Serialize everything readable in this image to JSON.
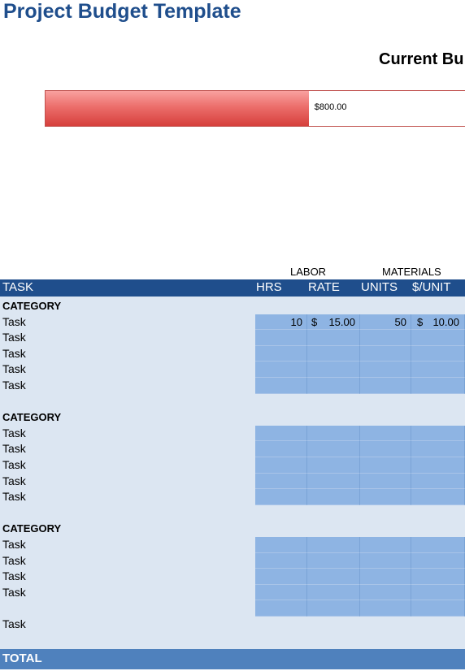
{
  "title": "Project Budget Template",
  "current_budget_label": "Current Bu",
  "budget_bar": {
    "value": "$800.00",
    "fill_fraction": 0.625,
    "color": "#e0524e"
  },
  "groups": {
    "labor": "LABOR",
    "materials": "MATERIALS"
  },
  "headers": {
    "task": "TASK",
    "hrs": "HRS",
    "rate": "RATE",
    "units": "UNITS",
    "per_unit": "$/UNIT"
  },
  "rows": [
    {
      "type": "category",
      "label": "CATEGORY"
    },
    {
      "type": "task",
      "label": "Task",
      "hrs": "10",
      "rate_sym": "$",
      "rate": "15.00",
      "units": "50",
      "unit_sym": "$",
      "per_unit": "10.00"
    },
    {
      "type": "task",
      "label": "Task"
    },
    {
      "type": "task",
      "label": "Task"
    },
    {
      "type": "task",
      "label": "Task"
    },
    {
      "type": "task",
      "label": "Task"
    },
    {
      "type": "blank"
    },
    {
      "type": "category",
      "label": "CATEGORY"
    },
    {
      "type": "task",
      "label": "Task"
    },
    {
      "type": "task",
      "label": "Task"
    },
    {
      "type": "task",
      "label": "Task"
    },
    {
      "type": "task",
      "label": "Task"
    },
    {
      "type": "task",
      "label": "Task"
    },
    {
      "type": "blank"
    },
    {
      "type": "category",
      "label": "CATEGORY"
    },
    {
      "type": "task",
      "label": "Task"
    },
    {
      "type": "task",
      "label": "Task"
    },
    {
      "type": "task",
      "label": "Task"
    },
    {
      "type": "task",
      "label": "Task"
    },
    {
      "type": "task",
      "label": ""
    },
    {
      "type": "task",
      "label": "Task",
      "no_fill": true
    }
  ],
  "total_label": "TOTAL",
  "colors": {
    "title": "#1f4e8c",
    "header": "#1f4e8c",
    "body": "#dce6f2",
    "input_cells": "#8eb4e3",
    "total": "#4f81bd"
  }
}
